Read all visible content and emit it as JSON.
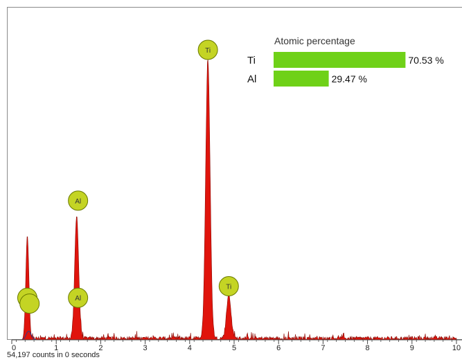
{
  "footer_text": "54,197 counts in 0 seconds",
  "colors": {
    "spectrum_fill": "#e0140c",
    "spectrum_line": "#8a0a04",
    "fit_line": "#2d3c8c",
    "marker_fill": "#c4d424",
    "marker_stroke": "#6a7a00",
    "bar_fill": "#6fd118",
    "axis": "#444444",
    "border": "#8a8a8a"
  },
  "chart_data": {
    "type": "line",
    "title": "",
    "xlabel": "",
    "ylabel": "",
    "xlim": [
      0,
      10
    ],
    "ylim": [
      0,
      1
    ],
    "x_ticks": [
      "0",
      "1",
      "2",
      "3",
      "4",
      "5",
      "6",
      "7",
      "8",
      "9",
      "10"
    ],
    "peaks": [
      {
        "element": "Ti",
        "energy": 0.35,
        "height": 0.36,
        "width": 0.035
      },
      {
        "element": "Al",
        "energy": 1.46,
        "height": 0.42,
        "width": 0.045
      },
      {
        "element": "Ti",
        "energy": 4.41,
        "height": 0.96,
        "width": 0.05
      },
      {
        "element": "Ti",
        "energy": 4.88,
        "height": 0.15,
        "width": 0.05
      }
    ],
    "markers": [
      {
        "label": "Ti",
        "energy": 0.35,
        "level": 0.145
      },
      {
        "label": "",
        "energy": 0.4,
        "level": 0.125
      },
      {
        "label": "Al",
        "energy": 1.49,
        "level": 0.145
      },
      {
        "label": "Al",
        "energy": 1.49,
        "level": 0.48
      },
      {
        "label": "Ti",
        "energy": 4.41,
        "level": 1.0
      },
      {
        "label": "Ti",
        "energy": 4.88,
        "level": 0.185
      }
    ],
    "legend": {
      "title": "Atomic percentage",
      "unit": "%",
      "entries": [
        {
          "element": "Ti",
          "value": 70.53,
          "display": "70.53 %"
        },
        {
          "element": "Al",
          "value": 29.47,
          "display": "29.47 %"
        }
      ]
    }
  }
}
